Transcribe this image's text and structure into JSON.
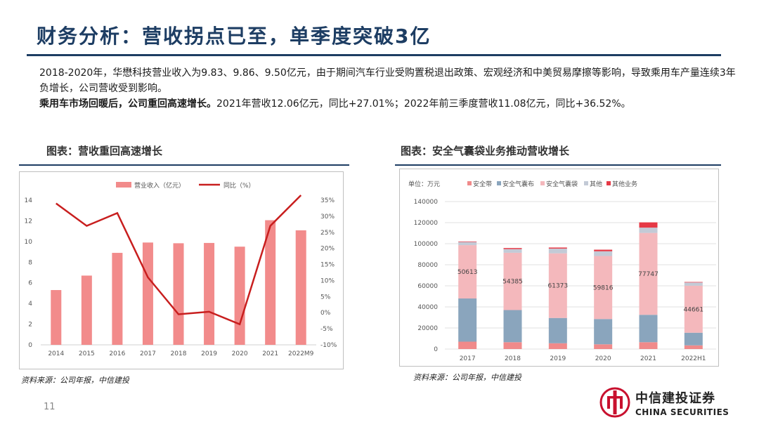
{
  "title": "财务分析：营收拐点已至，单季度突破3亿",
  "paragraph1": "2018-2020年，华懋科技营业收入为9.83、9.86、9.50亿元，由于期间汽车行业受购置税退出政策、宏观经济和中美贸易摩擦等影响，导致乘用车产量连续3年负增长，公司营收受到影响。",
  "paragraph2_bold": "乘用车市场回暖后，公司重回高速增长。",
  "paragraph2_rest": "2021年营收12.06亿元，同比+27.01%；2022年前三季度营收11.08亿元，同比+36.52%。",
  "chart1_title": "图表：营收重回高速增长",
  "chart2_title": "图表：安全气囊袋业务推动营收增长",
  "source1": "资料来源：公司年报，中信建投",
  "source2": "资料来源：公司年报，中信建投",
  "page_number": "11",
  "logo": {
    "cn": "中信建投证券",
    "en": "CHINA SECURITIES"
  },
  "colors": {
    "title": "#1d3d63",
    "bar": "#f28b8b",
    "line": "#c81e1e",
    "logo_red": "#c8102e"
  },
  "chart_data": [
    {
      "type": "bar",
      "categories": [
        "2014",
        "2015",
        "2016",
        "2017",
        "2018",
        "2019",
        "2020",
        "2021",
        "2022M9"
      ],
      "series": [
        {
          "name": "营业收入（亿元）",
          "type": "bar",
          "axis": "left",
          "values": [
            5.3,
            6.7,
            8.9,
            9.9,
            9.83,
            9.86,
            9.5,
            12.06,
            11.08
          ]
        },
        {
          "name": "同比（%）",
          "type": "line",
          "axis": "right",
          "values": [
            34,
            27,
            31,
            11,
            -0.5,
            0.3,
            -3.6,
            27.01,
            36.52
          ]
        }
      ],
      "y_left": {
        "min": 0,
        "max": 14,
        "step": 2,
        "ticks": [
          "0",
          "2",
          "4",
          "6",
          "8",
          "10",
          "12",
          "14"
        ]
      },
      "y_right": {
        "min": -10,
        "max": 35,
        "step": 5,
        "ticks": [
          "-10%",
          "-5%",
          "0%",
          "5%",
          "10%",
          "15%",
          "20%",
          "25%",
          "30%",
          "35%"
        ]
      },
      "legend_position": "top",
      "grid": false
    },
    {
      "type": "bar",
      "stacked": true,
      "unit_label": "单位：万元",
      "categories": [
        "2017",
        "2018",
        "2019",
        "2020",
        "2021",
        "2022H1"
      ],
      "series": [
        {
          "name": "安全带",
          "color": "#f08a8a",
          "values": [
            7000,
            6500,
            5500,
            4500,
            6500,
            3500
          ]
        },
        {
          "name": "安全气囊布",
          "color": "#8aa5bd",
          "values": [
            41000,
            30500,
            24000,
            24000,
            26000,
            12000
          ]
        },
        {
          "name": "安全气囊袋",
          "color": "#f4b8bc",
          "values": [
            50613,
            54385,
            61373,
            59816,
            77747,
            44661
          ]
        },
        {
          "name": "其他",
          "color": "#c3cad6",
          "values": [
            3000,
            3500,
            4500,
            4500,
            5000,
            3000
          ]
        },
        {
          "name": "其他业务",
          "color": "#e63946",
          "values": [
            500,
            1000,
            1000,
            1500,
            5000,
            500
          ]
        }
      ],
      "data_labels": [
        {
          "series": "安全气囊袋",
          "values": [
            "50613",
            "54385",
            "61373",
            "59816",
            "77747",
            "44661"
          ]
        }
      ],
      "y_axis": {
        "min": 0,
        "max": 140000,
        "step": 20000,
        "ticks": [
          "0",
          "20000",
          "40000",
          "60000",
          "80000",
          "100000",
          "120000",
          "140000"
        ]
      },
      "legend_position": "top",
      "grid": true
    }
  ]
}
